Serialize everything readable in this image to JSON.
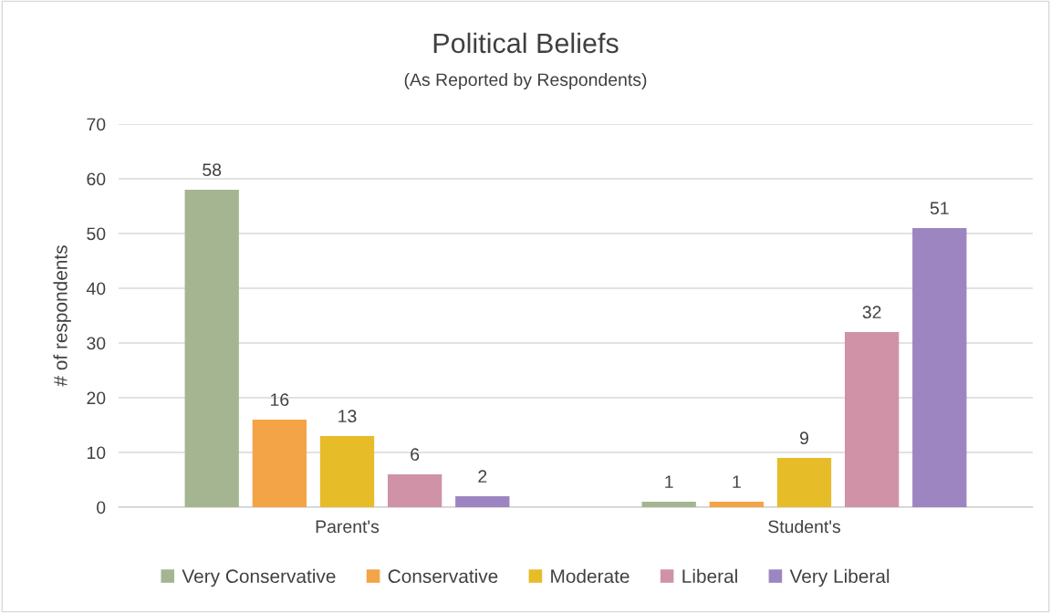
{
  "chart_data": {
    "type": "bar",
    "title": "Political Beliefs",
    "subtitle": "(As Reported by Respondents)",
    "ylabel": "# of respondents",
    "categories": [
      "Parent's",
      "Student's"
    ],
    "series": [
      {
        "name": "Very Conservative",
        "color": "#a5b592",
        "values": [
          58,
          1
        ]
      },
      {
        "name": "Conservative",
        "color": "#f3a447",
        "values": [
          16,
          1
        ]
      },
      {
        "name": "Moderate",
        "color": "#e7bc29",
        "values": [
          13,
          9
        ]
      },
      {
        "name": "Liberal",
        "color": "#d092a7",
        "values": [
          6,
          32
        ]
      },
      {
        "name": "Very Liberal",
        "color": "#9c85c0",
        "values": [
          2,
          51
        ]
      }
    ],
    "ylim": [
      0,
      70
    ],
    "yticks": [
      0,
      10,
      20,
      30,
      40,
      50,
      60,
      70
    ],
    "grid": "y",
    "legend": "bottom",
    "data_labels": true
  }
}
